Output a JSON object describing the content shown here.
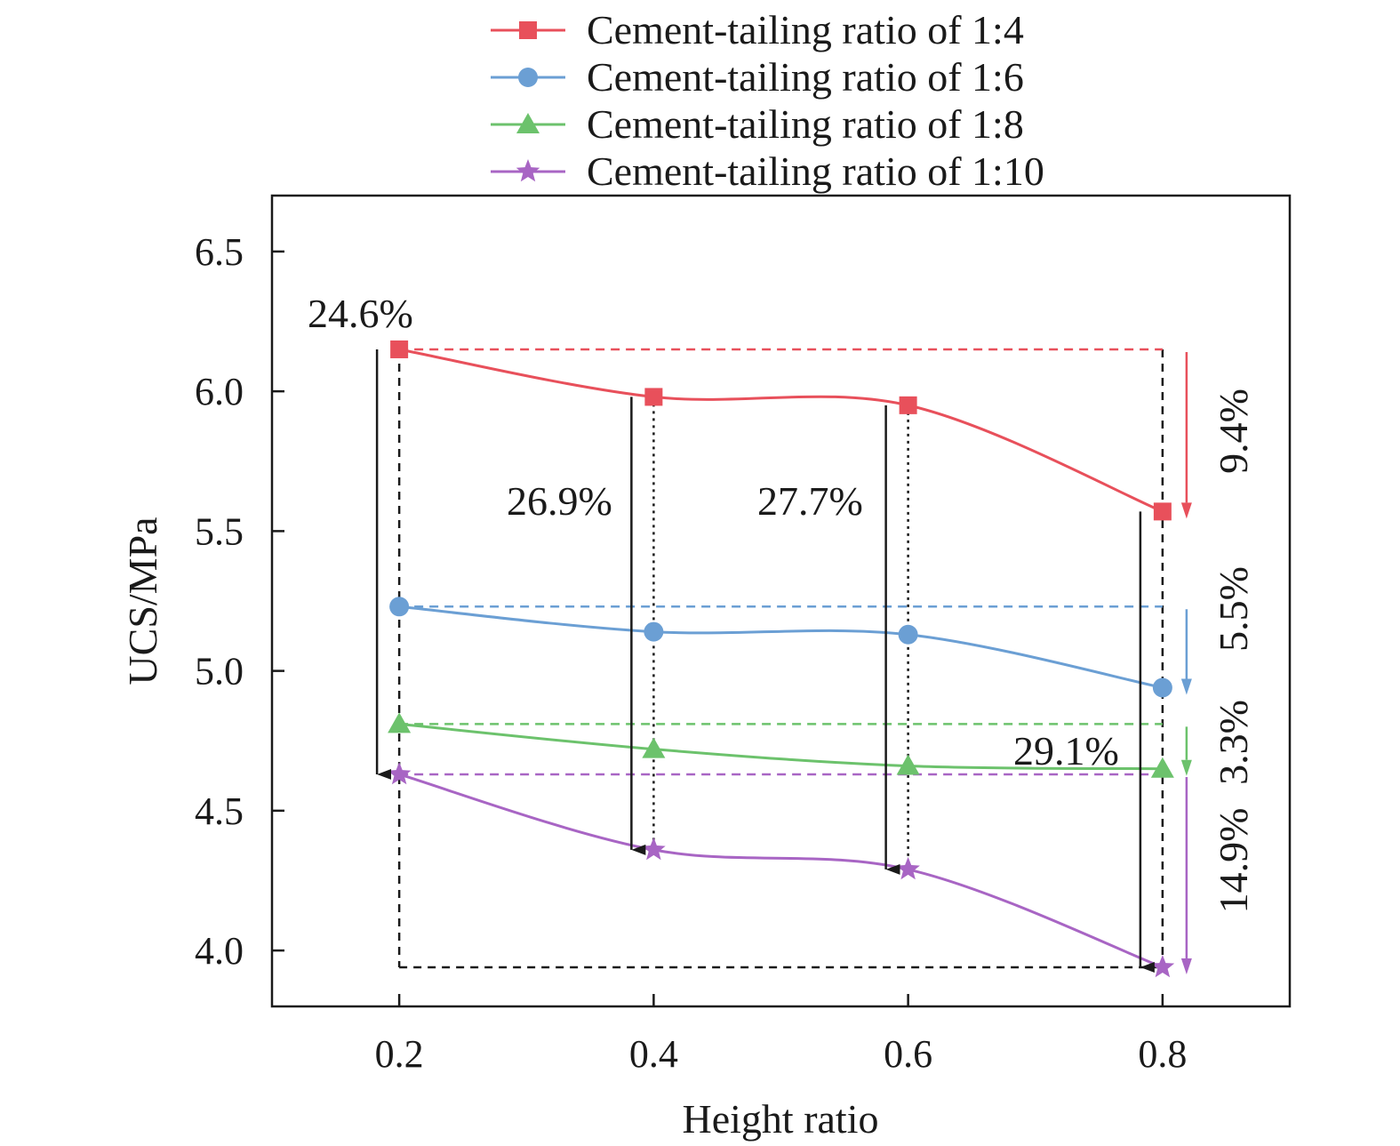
{
  "chart_data": {
    "type": "line",
    "title": "",
    "xlabel": "Height ratio",
    "ylabel": "UCS/MPa",
    "xlim": [
      0.1,
      0.9
    ],
    "ylim": [
      3.8,
      6.7
    ],
    "x_ticks": [
      "0.2",
      "0.4",
      "0.6",
      "0.8"
    ],
    "y_ticks": [
      "4.0",
      "4.5",
      "5.0",
      "5.5",
      "6.0",
      "6.5"
    ],
    "legend_position": "top",
    "x": [
      0.2,
      0.4,
      0.6,
      0.8
    ],
    "series": [
      {
        "name": "Cement-tailing ratio of 1:4",
        "values": [
          6.15,
          5.98,
          5.95,
          5.57
        ],
        "color": "#e8505b",
        "marker": "square"
      },
      {
        "name": "Cement-tailing ratio of 1:6",
        "values": [
          5.23,
          5.14,
          5.13,
          4.94
        ],
        "color": "#6b9fd4",
        "marker": "circle"
      },
      {
        "name": "Cement-tailing ratio of 1:8",
        "values": [
          4.81,
          4.72,
          4.66,
          4.65
        ],
        "color": "#6cc26c",
        "marker": "triangle"
      },
      {
        "name": "Cement-tailing ratio of 1:10",
        "values": [
          4.63,
          4.36,
          4.29,
          3.94
        ],
        "color": "#a865c4",
        "marker": "star"
      }
    ],
    "annotations": [
      {
        "text": "24.6%",
        "color": "#1a1a1a"
      },
      {
        "text": "26.9%",
        "color": "#1a1a1a"
      },
      {
        "text": "27.7%",
        "color": "#1a1a1a"
      },
      {
        "text": "29.1%",
        "color": "#1a1a1a"
      },
      {
        "text": "9.4%",
        "color": "#e8505b"
      },
      {
        "text": "5.5%",
        "color": "#6b9fd4"
      },
      {
        "text": "3.3%",
        "color": "#6cc26c"
      },
      {
        "text": "14.9%",
        "color": "#a865c4"
      }
    ]
  }
}
